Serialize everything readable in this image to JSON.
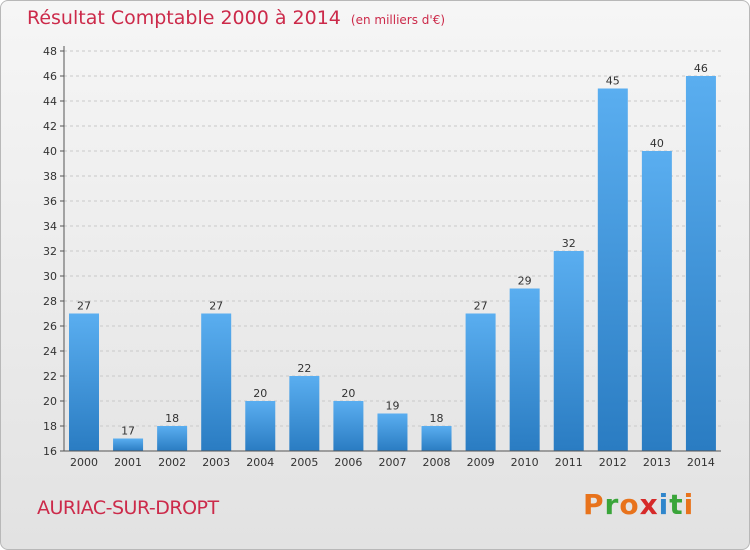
{
  "header": {
    "title": "Résultat Comptable 2000 à 2014",
    "unit": "(en milliers d'€)"
  },
  "footer": {
    "commune": "AURIAC-SUR-DROPT",
    "logo": "Proxiti"
  },
  "colors": {
    "bar": "#2f86cc",
    "title": "#cc2a4a",
    "logo": [
      "#e8731c",
      "#3aa53a",
      "#e8731c",
      "#d62a2a",
      "#2f86cc",
      "#3aa53a",
      "#e8731c"
    ]
  },
  "chart_data": {
    "type": "bar",
    "title": "Résultat Comptable 2000 à 2014",
    "subtitle": "(en milliers d'€)",
    "categories": [
      "2000",
      "2001",
      "2002",
      "2003",
      "2004",
      "2005",
      "2006",
      "2007",
      "2008",
      "2009",
      "2010",
      "2011",
      "2012",
      "2013",
      "2014"
    ],
    "values": [
      27,
      17,
      18,
      27,
      20,
      22,
      20,
      19,
      18,
      27,
      29,
      32,
      45,
      40,
      46
    ],
    "ylim": [
      16,
      48
    ],
    "yticks": [
      16,
      18,
      20,
      22,
      24,
      26,
      28,
      30,
      32,
      34,
      36,
      38,
      40,
      42,
      44,
      46,
      48
    ],
    "grid": true,
    "data_labels": true
  }
}
